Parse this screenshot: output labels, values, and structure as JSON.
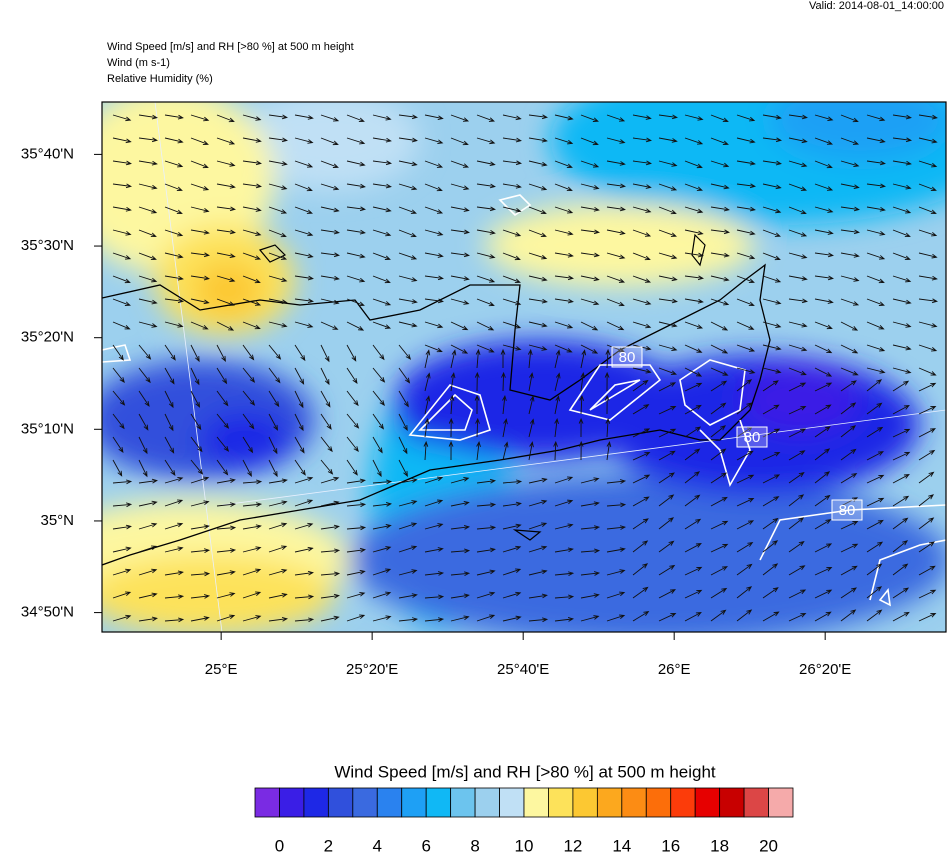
{
  "header": {
    "valid": "Valid: 2014-08-01_14:00:00",
    "lines": [
      "Wind Speed [m/s] and RH [>80 %] at 500 m height",
      "Wind   (m s-1)",
      "Relative Humidity   (%)"
    ]
  },
  "map": {
    "xlim": [
      24.737,
      26.6
    ],
    "ylim": [
      34.798,
      35.762
    ],
    "xticks": [
      {
        "value": 25,
        "label": "25°E"
      },
      {
        "value": 25.3333,
        "label": "25°20'E"
      },
      {
        "value": 25.6667,
        "label": "25°40'E"
      },
      {
        "value": 26,
        "label": "26°E"
      },
      {
        "value": 26.3333,
        "label": "26°20'E"
      }
    ],
    "yticks": [
      {
        "value": 34.8333,
        "label": "34°50'N"
      },
      {
        "value": 35,
        "label": "35°N"
      },
      {
        "value": 35.1667,
        "label": "35°10'N"
      },
      {
        "value": 35.3333,
        "label": "35°20'N"
      },
      {
        "value": 35.5,
        "label": "35°30'N"
      },
      {
        "value": 35.6667,
        "label": "35°40'N"
      }
    ],
    "contour_labels": [
      "80",
      "80",
      "80"
    ]
  },
  "colorbar": {
    "title": "Wind Speed [m/s] and RH [>80 %] at 500 m height",
    "range": [
      -1,
      21
    ],
    "colors": [
      "#7a2be3",
      "#3a1ee6",
      "#1e28e6",
      "#3050dc",
      "#3a6ae0",
      "#2a82ef",
      "#1ea0f5",
      "#10b8f5",
      "#6cc4ee",
      "#9cd0ee",
      "#c0e0f5",
      "#fdf7a0",
      "#fde25a",
      "#fcc832",
      "#fca81e",
      "#fc8c14",
      "#fc6e0a",
      "#fc3c0a",
      "#e60000",
      "#c80000",
      "#dc4646",
      "#f5aaaa"
    ],
    "ticks": [
      0,
      2,
      4,
      6,
      8,
      10,
      12,
      14,
      16,
      18,
      20
    ]
  }
}
